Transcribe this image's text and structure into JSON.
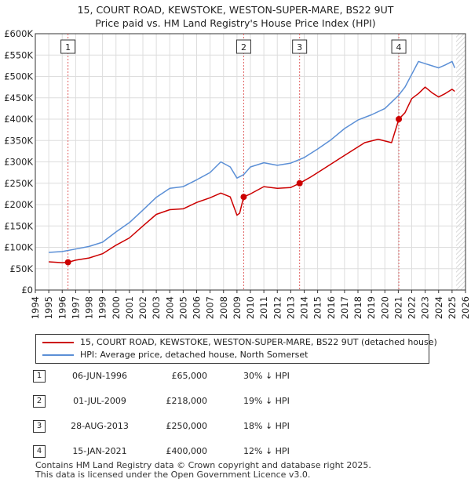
{
  "chart_data": {
    "type": "line",
    "title": "15, COURT ROAD, KEWSTOKE, WESTON-SUPER-MARE, BS22 9UT",
    "subtitle": "Price paid vs. HM Land Registry's House Price Index (HPI)",
    "xlim": [
      1994,
      2026
    ],
    "ylim": [
      0,
      600000
    ],
    "x_ticks": [
      "1994",
      "1995",
      "1996",
      "1997",
      "1998",
      "1999",
      "2000",
      "2001",
      "2002",
      "2003",
      "2004",
      "2005",
      "2006",
      "2007",
      "2008",
      "2009",
      "2010",
      "2011",
      "2012",
      "2013",
      "2014",
      "2015",
      "2016",
      "2017",
      "2018",
      "2019",
      "2020",
      "2021",
      "2022",
      "2023",
      "2024",
      "2025",
      "2026"
    ],
    "y_ticks": [
      "£0",
      "£50K",
      "£100K",
      "£150K",
      "£200K",
      "£250K",
      "£300K",
      "£350K",
      "£400K",
      "£450K",
      "£500K",
      "£550K",
      "£600K"
    ],
    "y_tick_values": [
      0,
      50000,
      100000,
      150000,
      200000,
      250000,
      300000,
      350000,
      400000,
      450000,
      500000,
      550000,
      600000
    ],
    "data_end": 2025.3,
    "series": [
      {
        "name": "15, COURT ROAD, KEWSTOKE, WESTON-SUPER-MARE, BS22 9UT (detached house)",
        "color": "#cc0000",
        "x": [
          1995.0,
          1996.0,
          1996.43,
          1997.0,
          1998.0,
          1999.0,
          2000.0,
          2001.0,
          2002.0,
          2003.0,
          2004.0,
          2005.0,
          2006.0,
          2007.0,
          2007.8,
          2008.5,
          2009.0,
          2009.2,
          2009.5,
          2010.0,
          2011.0,
          2012.0,
          2013.0,
          2013.66,
          2014.5,
          2015.5,
          2016.5,
          2017.5,
          2018.5,
          2019.5,
          2020.5,
          2021.04,
          2021.5,
          2022.0,
          2022.5,
          2023.0,
          2023.5,
          2024.0,
          2024.5,
          2025.0,
          2025.2
        ],
        "values": [
          66000,
          64000,
          65000,
          70000,
          75000,
          85000,
          105000,
          122000,
          150000,
          177000,
          188000,
          190000,
          205000,
          216000,
          227000,
          218000,
          175000,
          180000,
          218000,
          225000,
          242000,
          238000,
          240000,
          250000,
          265000,
          285000,
          305000,
          325000,
          345000,
          353000,
          345000,
          400000,
          415000,
          448000,
          460000,
          475000,
          462000,
          452000,
          460000,
          470000,
          465000
        ]
      },
      {
        "name": "HPI: Average price, detached house, North Somerset",
        "color": "#5b8fd6",
        "x": [
          1995.0,
          1996.0,
          1997.0,
          1998.0,
          1999.0,
          2000.0,
          2001.0,
          2002.0,
          2003.0,
          2004.0,
          2005.0,
          2006.0,
          2007.0,
          2007.8,
          2008.5,
          2009.0,
          2009.5,
          2010.0,
          2011.0,
          2012.0,
          2013.0,
          2014.0,
          2015.0,
          2016.0,
          2017.0,
          2018.0,
          2019.0,
          2020.0,
          2021.0,
          2021.5,
          2022.0,
          2022.5,
          2023.0,
          2023.5,
          2024.0,
          2024.5,
          2025.0,
          2025.2
        ],
        "values": [
          88000,
          90000,
          96000,
          102000,
          112000,
          136000,
          158000,
          187000,
          217000,
          238000,
          242000,
          258000,
          275000,
          300000,
          288000,
          262000,
          270000,
          288000,
          298000,
          292000,
          297000,
          310000,
          330000,
          352000,
          378000,
          398000,
          410000,
          425000,
          455000,
          475000,
          505000,
          535000,
          530000,
          525000,
          520000,
          527000,
          535000,
          520000
        ]
      }
    ],
    "sales": [
      {
        "label": "1",
        "x": 1996.43,
        "value": 65000
      },
      {
        "label": "2",
        "x": 2009.5,
        "value": 218000
      },
      {
        "label": "3",
        "x": 2013.66,
        "value": 250000
      },
      {
        "label": "4",
        "x": 2021.04,
        "value": 400000
      }
    ],
    "legend": [
      {
        "label": "15, COURT ROAD, KEWSTOKE, WESTON-SUPER-MARE, BS22 9UT (detached house)",
        "color": "#cc0000"
      },
      {
        "label": "HPI: Average price, detached house, North Somerset",
        "color": "#5b8fd6"
      }
    ]
  },
  "sales_table": [
    {
      "num": "1",
      "date": "06-JUN-1996",
      "price": "£65,000",
      "hpi": "30% ↓ HPI"
    },
    {
      "num": "2",
      "date": "01-JUL-2009",
      "price": "£218,000",
      "hpi": "19% ↓ HPI"
    },
    {
      "num": "3",
      "date": "28-AUG-2013",
      "price": "£250,000",
      "hpi": "18% ↓ HPI"
    },
    {
      "num": "4",
      "date": "15-JAN-2021",
      "price": "£400,000",
      "hpi": "12% ↓ HPI"
    }
  ],
  "footer": {
    "line1": "Contains HM Land Registry data © Crown copyright and database right 2025.",
    "line2": "This data is licensed under the Open Government Licence v3.0."
  }
}
